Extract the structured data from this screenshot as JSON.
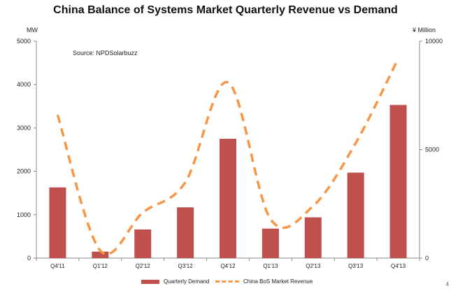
{
  "chart_data": {
    "type": "bar",
    "title": "China Balance of Systems Market Quarterly Revenue vs Demand",
    "annotation": "Source: NPDSolarbuzz",
    "categories": [
      "Q4'11",
      "Q1'12",
      "Q2'12",
      "Q3'12",
      "Q4'12",
      "Q1'13",
      "Q2'13",
      "Q3'13",
      "Q4'13"
    ],
    "series": [
      {
        "name": "Quarterly Demand",
        "type": "bar",
        "axis": "left",
        "color": "#c0504d",
        "values": [
          1630,
          150,
          660,
          1170,
          2750,
          680,
          940,
          1970,
          3530
        ]
      },
      {
        "name": "China BoS Market Revenue",
        "type": "line",
        "style": "dashed",
        "axis": "right",
        "color": "#f79646",
        "values": [
          6600,
          350,
          2100,
          3500,
          8100,
          1800,
          2400,
          5300,
          9200
        ]
      }
    ],
    "y_left": {
      "label": "MW",
      "min": 0,
      "max": 5000,
      "ticks": [
        0,
        1000,
        2000,
        3000,
        4000,
        5000
      ]
    },
    "y_right": {
      "label": "¥ Million",
      "min": 0,
      "max": 10000,
      "ticks": [
        0,
        5000,
        10000
      ]
    },
    "grid": false,
    "legend_position": "bottom"
  },
  "corner_mark": "4"
}
